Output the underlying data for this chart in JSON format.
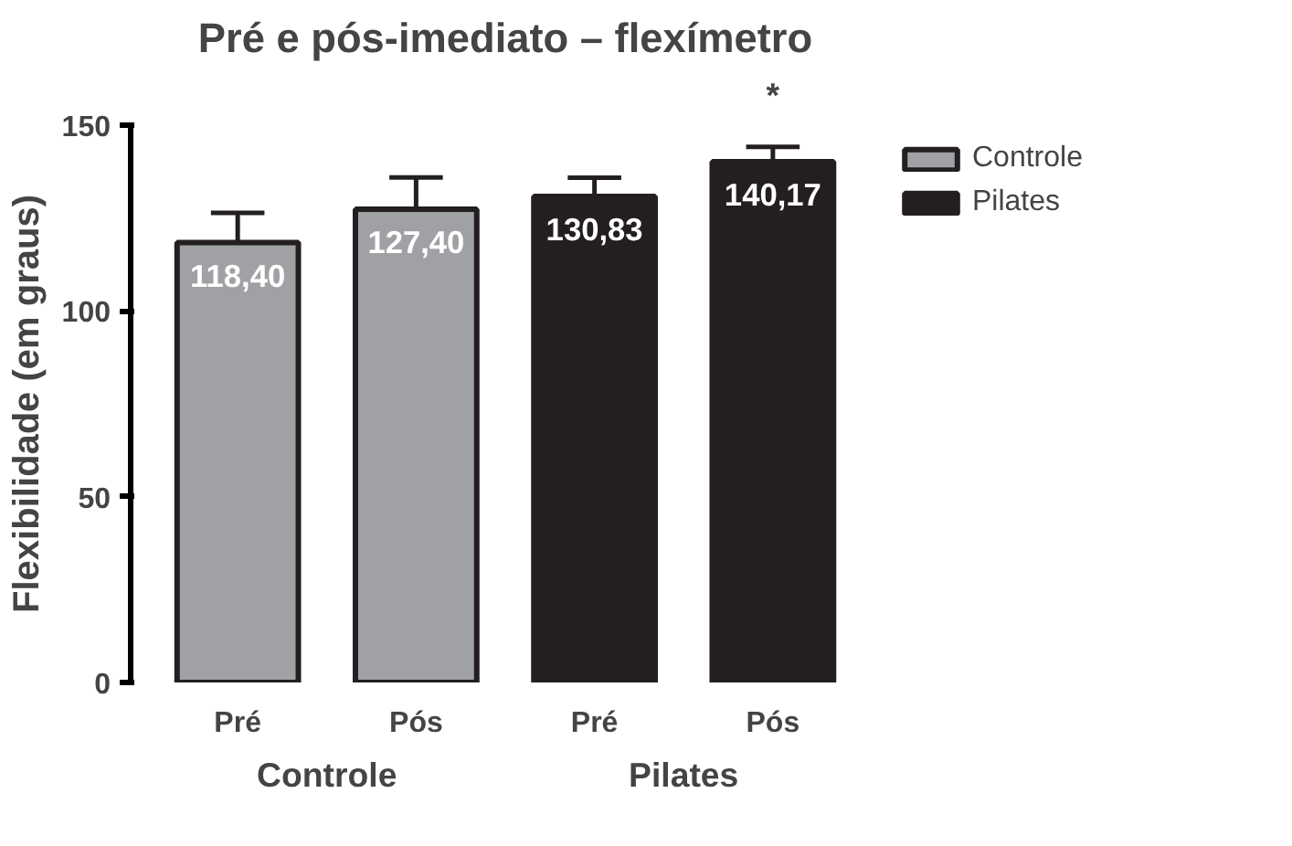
{
  "chart_data": {
    "type": "bar",
    "title": "Pré e pós-imediato – flexímetro",
    "ylabel": "Flexibilidade (em graus)",
    "categories": [
      "Pré",
      "Pós",
      "Pré",
      "Pós"
    ],
    "series": [
      {
        "name": "Controle",
        "color": "#a0a1a4",
        "values": [
          118.4,
          127.4,
          null,
          null
        ],
        "errors": [
          8,
          8.5,
          null,
          null
        ],
        "value_labels": [
          "118,40",
          "127,40",
          null,
          null
        ]
      },
      {
        "name": "Pilates",
        "color": "#231f20",
        "values": [
          null,
          null,
          130.83,
          140.17
        ],
        "errors": [
          null,
          null,
          5,
          4
        ],
        "value_labels": [
          null,
          null,
          "130,83",
          "140,17"
        ]
      }
    ],
    "annotations": [
      "Controle",
      "Pilates",
      "*"
    ],
    "ylim": [
      0,
      150
    ],
    "yticks": [
      0,
      50,
      100,
      150
    ],
    "grid": false,
    "legend": "right"
  }
}
